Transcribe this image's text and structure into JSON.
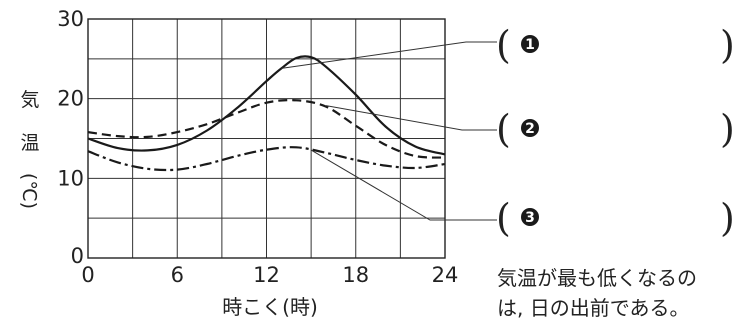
{
  "chart_data": {
    "type": "line",
    "xlabel": "時こく(時)",
    "ylabel_chars": [
      "気",
      "温",
      "(℃)"
    ],
    "x_ticks": [
      "0",
      "6",
      "12",
      "18",
      "24"
    ],
    "y_ticks": [
      "0",
      "10",
      "20",
      "30"
    ],
    "xlim": [
      0,
      24
    ],
    "ylim": [
      0,
      30
    ],
    "grid": true,
    "series": [
      {
        "label": "❶",
        "style": "solid",
        "x": [
          0,
          2,
          4,
          6,
          8,
          10,
          12,
          13,
          14,
          15,
          16,
          18,
          20,
          22,
          24
        ],
        "y": [
          15,
          13.8,
          13.5,
          14.2,
          16,
          18.8,
          22.2,
          23.8,
          25.1,
          25.2,
          24,
          20.5,
          16.5,
          14,
          13
        ]
      },
      {
        "label": "❷",
        "style": "dashed",
        "x": [
          0,
          2,
          4,
          6,
          8,
          10,
          12,
          14,
          16,
          18,
          20,
          22,
          24
        ],
        "y": [
          15.8,
          15.3,
          15.2,
          15.8,
          16.8,
          18.2,
          19.5,
          19.8,
          19,
          16.6,
          14.2,
          12.8,
          12.6
        ]
      },
      {
        "label": "❸",
        "style": "dash-dot",
        "x": [
          0,
          2,
          4,
          6,
          8,
          10,
          12,
          14,
          16,
          18,
          20,
          22,
          24
        ],
        "y": [
          13.4,
          12,
          11.2,
          11.1,
          11.8,
          12.8,
          13.6,
          13.9,
          13.2,
          12.3,
          11.6,
          11.3,
          11.8
        ]
      }
    ],
    "leader_x": [
      13,
      16,
      15
    ]
  },
  "note": {
    "line1": "気温が最も低くなるの",
    "line2": "は, 日の出前である。"
  },
  "answer_boxes": [
    {
      "marker": "❶",
      "open": "(",
      "close": ")"
    },
    {
      "marker": "❷",
      "open": "(",
      "close": ")"
    },
    {
      "marker": "❸",
      "open": "(",
      "close": ")"
    }
  ]
}
